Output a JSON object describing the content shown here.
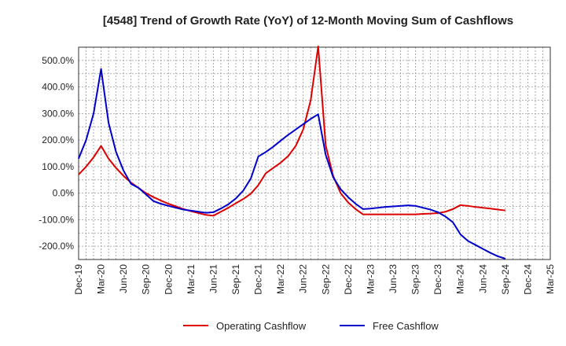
{
  "chart_data": {
    "type": "line",
    "title": "[4548]  Trend of Growth Rate (YoY) of 12-Month Moving Sum of Cashflows",
    "xlabel": "",
    "ylabel": "",
    "ylim": [
      -250,
      550
    ],
    "y_ticks": [
      500,
      400,
      300,
      200,
      100,
      0,
      -100,
      -200
    ],
    "y_tick_labels": [
      "500.0%",
      "400.0%",
      "300.0%",
      "200.0%",
      "100.0%",
      "0.0%",
      "-100.0%",
      "-200.0%"
    ],
    "x_ticks": [
      "Dec-19",
      "Mar-20",
      "Jun-20",
      "Sep-20",
      "Dec-20",
      "Mar-21",
      "Jun-21",
      "Sep-21",
      "Dec-21",
      "Mar-22",
      "Jun-22",
      "Sep-22",
      "Dec-22",
      "Mar-23",
      "Jun-23",
      "Sep-23",
      "Dec-23",
      "Mar-24",
      "Jun-24",
      "Sep-24",
      "Dec-24",
      "Mar-25"
    ],
    "grid": true,
    "legend_position": "bottom",
    "series": [
      {
        "name": "Operating Cashflow",
        "color": "#dd0000",
        "values": [
          [
            0,
            70
          ],
          [
            1,
            100
          ],
          [
            2,
            135
          ],
          [
            3,
            178
          ],
          [
            4,
            130
          ],
          [
            5,
            95
          ],
          [
            6,
            65
          ],
          [
            7,
            40
          ],
          [
            8,
            20
          ],
          [
            9,
            0
          ],
          [
            10,
            -15
          ],
          [
            11,
            -28
          ],
          [
            12,
            -40
          ],
          [
            13,
            -50
          ],
          [
            14,
            -60
          ],
          [
            15,
            -68
          ],
          [
            16,
            -75
          ],
          [
            17,
            -82
          ],
          [
            18,
            -85
          ],
          [
            19,
            -70
          ],
          [
            20,
            -55
          ],
          [
            21,
            -38
          ],
          [
            22,
            -22
          ],
          [
            23,
            -2
          ],
          [
            24,
            30
          ],
          [
            25,
            75
          ],
          [
            26,
            95
          ],
          [
            27,
            115
          ],
          [
            28,
            140
          ],
          [
            29,
            178
          ],
          [
            30,
            240
          ],
          [
            31,
            350
          ],
          [
            32,
            553
          ],
          [
            33,
            180
          ],
          [
            34,
            65
          ],
          [
            35,
            0
          ],
          [
            36,
            -35
          ],
          [
            37,
            -60
          ],
          [
            38,
            -80
          ],
          [
            39,
            -80
          ],
          [
            40,
            -80
          ],
          [
            41,
            -80
          ],
          [
            42,
            -80
          ],
          [
            43,
            -80
          ],
          [
            44,
            -80
          ],
          [
            45,
            -80
          ],
          [
            46,
            -78
          ],
          [
            47,
            -77
          ],
          [
            48,
            -75
          ],
          [
            49,
            -70
          ],
          [
            50,
            -60
          ],
          [
            51,
            -45
          ],
          [
            52,
            -48
          ],
          [
            53,
            -52
          ],
          [
            54,
            -55
          ],
          [
            55,
            -58
          ],
          [
            56,
            -62
          ],
          [
            57,
            -65
          ]
        ]
      },
      {
        "name": "Free Cashflow",
        "color": "#0000cc",
        "values": [
          [
            0,
            130
          ],
          [
            1,
            200
          ],
          [
            2,
            300
          ],
          [
            3,
            468
          ],
          [
            4,
            265
          ],
          [
            5,
            155
          ],
          [
            6,
            85
          ],
          [
            7,
            35
          ],
          [
            8,
            20
          ],
          [
            9,
            -5
          ],
          [
            10,
            -30
          ],
          [
            11,
            -40
          ],
          [
            12,
            -48
          ],
          [
            13,
            -55
          ],
          [
            14,
            -62
          ],
          [
            15,
            -66
          ],
          [
            16,
            -70
          ],
          [
            17,
            -74
          ],
          [
            18,
            -72
          ],
          [
            19,
            -58
          ],
          [
            20,
            -42
          ],
          [
            21,
            -20
          ],
          [
            22,
            10
          ],
          [
            23,
            55
          ],
          [
            24,
            138
          ],
          [
            25,
            155
          ],
          [
            26,
            175
          ],
          [
            27,
            198
          ],
          [
            28,
            220
          ],
          [
            29,
            240
          ],
          [
            30,
            260
          ],
          [
            31,
            280
          ],
          [
            32,
            297
          ],
          [
            33,
            145
          ],
          [
            34,
            60
          ],
          [
            35,
            15
          ],
          [
            36,
            -15
          ],
          [
            37,
            -40
          ],
          [
            38,
            -60
          ],
          [
            39,
            -58
          ],
          [
            40,
            -55
          ],
          [
            41,
            -52
          ],
          [
            42,
            -50
          ],
          [
            43,
            -48
          ],
          [
            44,
            -46
          ],
          [
            45,
            -48
          ],
          [
            46,
            -55
          ],
          [
            47,
            -62
          ],
          [
            48,
            -72
          ],
          [
            49,
            -88
          ],
          [
            50,
            -110
          ],
          [
            51,
            -155
          ],
          [
            52,
            -180
          ],
          [
            53,
            -195
          ],
          [
            54,
            -210
          ],
          [
            55,
            -225
          ],
          [
            56,
            -238
          ],
          [
            57,
            -247
          ]
        ]
      }
    ]
  }
}
